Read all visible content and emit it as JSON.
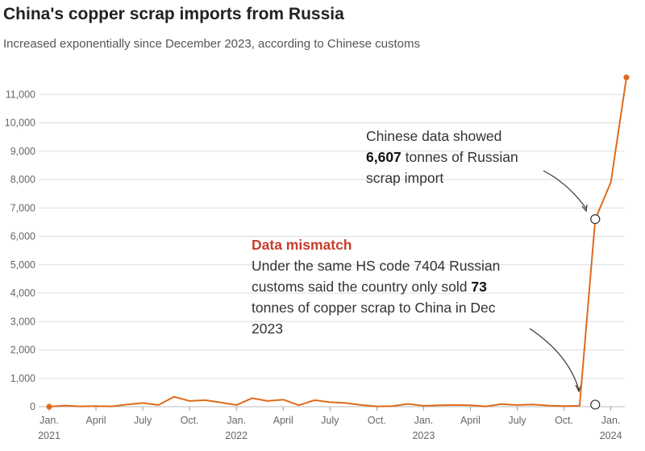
{
  "header": {
    "title": "China's copper scrap imports from Russia",
    "subtitle": "Increased exponentially since  December 2023, according to Chinese customs"
  },
  "colors": {
    "line": "#e06a1b",
    "grid": "#dddddd",
    "mismatch": "#c73e2a"
  },
  "annotations": {
    "chinese": {
      "line1": "Chinese data showed",
      "value": "6,607",
      "line2_rest": " tonnes of Russian",
      "line3": "scrap import"
    },
    "mismatch": {
      "heading": "Data mismatch",
      "line1": "Under the same HS code 7404 Russian",
      "line2_pre": "customs said the country only sold ",
      "value": "73",
      "line3": "tonnes of copper scrap to China in Dec",
      "line4": "2023"
    }
  },
  "chart_data": {
    "type": "line",
    "title": "China's copper scrap imports from Russia",
    "subtitle": "Increased exponentially since  December 2023, according to Chinese customs",
    "ylim": [
      0,
      11500
    ],
    "yticks": [
      0,
      1000,
      2000,
      3000,
      4000,
      5000,
      6000,
      7000,
      8000,
      9000,
      10000,
      11000
    ],
    "ytick_labels": [
      "0",
      "1,000",
      "2,000",
      "3,000",
      "4,000",
      "5,000",
      "6,000",
      "7,000",
      "8,000",
      "9,000",
      "10,000",
      "11,000"
    ],
    "xticks": [
      {
        "month": "2021-01",
        "label": "Jan.",
        "year": "2021"
      },
      {
        "month": "2021-04",
        "label": "April",
        "year": ""
      },
      {
        "month": "2021-07",
        "label": "July",
        "year": ""
      },
      {
        "month": "2021-10",
        "label": "Oct.",
        "year": ""
      },
      {
        "month": "2022-01",
        "label": "Jan.",
        "year": "2022"
      },
      {
        "month": "2022-04",
        "label": "April",
        "year": ""
      },
      {
        "month": "2022-07",
        "label": "July",
        "year": ""
      },
      {
        "month": "2022-10",
        "label": "Oct.",
        "year": ""
      },
      {
        "month": "2023-01",
        "label": "Jan.",
        "year": "2023"
      },
      {
        "month": "2023-04",
        "label": "April",
        "year": ""
      },
      {
        "month": "2023-07",
        "label": "July",
        "year": ""
      },
      {
        "month": "2023-10",
        "label": "Oct.",
        "year": ""
      },
      {
        "month": "2024-01",
        "label": "Jan.",
        "year": "2024"
      }
    ],
    "grid": true,
    "series": [
      {
        "name": "China copper scrap imports from Russia (tonnes)",
        "x": [
          "2021-01",
          "2021-02",
          "2021-03",
          "2021-04",
          "2021-05",
          "2021-06",
          "2021-07",
          "2021-08",
          "2021-09",
          "2021-10",
          "2021-11",
          "2021-12",
          "2022-01",
          "2022-02",
          "2022-03",
          "2022-04",
          "2022-05",
          "2022-06",
          "2022-07",
          "2022-08",
          "2022-09",
          "2022-10",
          "2022-11",
          "2022-12",
          "2023-01",
          "2023-02",
          "2023-03",
          "2023-04",
          "2023-05",
          "2023-06",
          "2023-07",
          "2023-08",
          "2023-09",
          "2023-10",
          "2023-11",
          "2023-12",
          "2024-01",
          "2024-02"
        ],
        "values": [
          0,
          40,
          10,
          20,
          10,
          80,
          130,
          60,
          350,
          200,
          230,
          150,
          60,
          300,
          200,
          250,
          50,
          230,
          160,
          130,
          60,
          10,
          20,
          100,
          30,
          50,
          60,
          50,
          10,
          90,
          60,
          80,
          40,
          20,
          30,
          6607,
          7900,
          11600
        ],
        "markers": [
          {
            "x": "2021-01",
            "value": 0,
            "style": "filled"
          },
          {
            "x": "2023-12",
            "value": 6607,
            "style": "hollow"
          },
          {
            "x": "2024-02",
            "value": 11600,
            "style": "filled"
          }
        ]
      },
      {
        "name": "Russian customs, Dec 2023 (tonnes)",
        "x": [
          "2023-12"
        ],
        "values": [
          73
        ],
        "markers": [
          {
            "x": "2023-12",
            "value": 73,
            "style": "hollow"
          }
        ]
      }
    ]
  }
}
